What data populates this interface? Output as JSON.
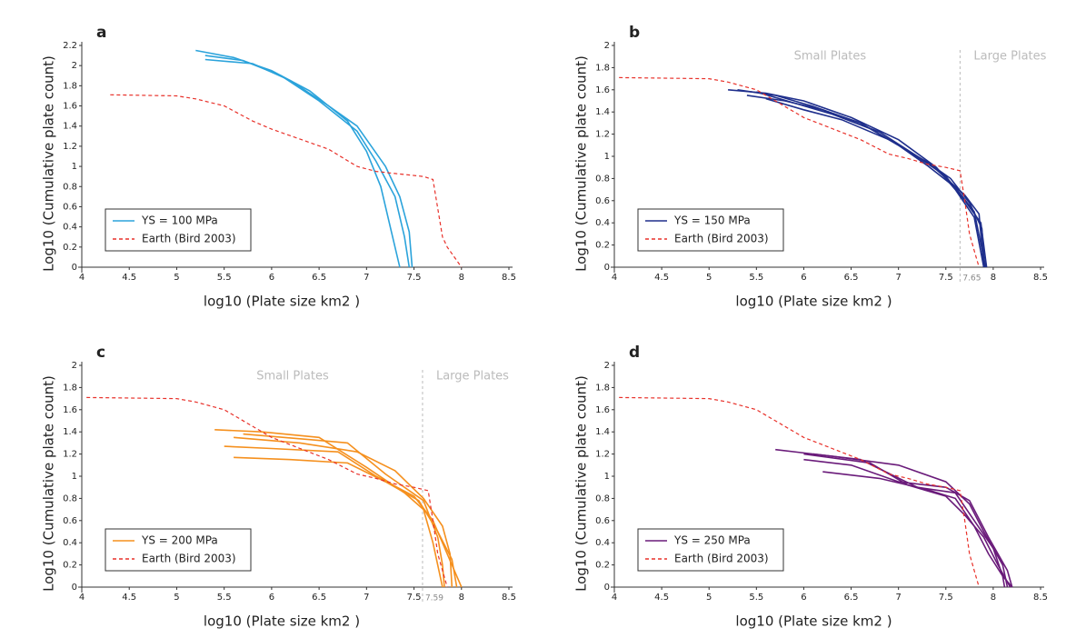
{
  "chart_data": [
    {
      "type": "line",
      "title": "a",
      "x_label": "log10 (Plate size km2 )",
      "y_label": "Log10 (Cumulative plate count)",
      "xlim": [
        4,
        8.5
      ],
      "xticks": [
        4,
        4.5,
        5,
        5.5,
        6,
        6.5,
        7,
        7.5,
        8,
        8.5
      ],
      "ylim": [
        0,
        2.2
      ],
      "yticks": [
        0,
        0.2,
        0.4,
        0.6,
        0.8,
        1,
        1.2,
        1.4,
        1.6,
        1.8,
        2,
        2.2
      ],
      "series": [
        {
          "name": "YS = 100 MPa",
          "color": "#2ba3db",
          "dashed": false,
          "runs": [
            {
              "x": [
                5.2,
                5.6,
                6.0,
                6.4,
                6.8,
                7.0,
                7.15,
                7.25,
                7.35
              ],
              "values": [
                2.15,
                2.08,
                1.95,
                1.75,
                1.45,
                1.15,
                0.8,
                0.4,
                0
              ]
            },
            {
              "x": [
                5.3,
                5.7,
                6.1,
                6.5,
                6.9,
                7.1,
                7.3,
                7.4,
                7.45
              ],
              "values": [
                2.1,
                2.05,
                1.9,
                1.65,
                1.35,
                1.05,
                0.7,
                0.3,
                0
              ]
            },
            {
              "x": [
                5.3,
                5.8,
                6.2,
                6.6,
                6.9,
                7.2,
                7.35,
                7.45,
                7.48
              ],
              "values": [
                2.06,
                2.02,
                1.85,
                1.6,
                1.4,
                1.0,
                0.7,
                0.35,
                0
              ]
            }
          ]
        },
        {
          "name": "Earth (Bird 2003)",
          "color": "#e8312a",
          "dashed": true,
          "runs": [
            {
              "x": [
                4.3,
                5.0,
                5.2,
                5.5,
                5.8,
                6.0,
                6.3,
                6.6,
                6.9,
                7.1,
                7.3,
                7.6,
                7.7,
                7.8,
                7.85,
                8.0
              ],
              "values": [
                1.71,
                1.7,
                1.67,
                1.6,
                1.45,
                1.37,
                1.27,
                1.17,
                1.0,
                0.95,
                0.93,
                0.9,
                0.87,
                0.3,
                0.2,
                0
              ]
            }
          ]
        }
      ]
    },
    {
      "type": "line",
      "title": "b",
      "x_label": "log10 (Plate size km2 )",
      "y_label": "Log10 (Cumulative plate count)",
      "xlim": [
        4,
        8.5
      ],
      "xticks": [
        4,
        4.5,
        5,
        5.5,
        6,
        6.5,
        7,
        7.5,
        8,
        8.5
      ],
      "ylim": [
        0,
        2
      ],
      "yticks": [
        0,
        0.2,
        0.4,
        0.6,
        0.8,
        1,
        1.2,
        1.4,
        1.6,
        1.8,
        2
      ],
      "divider": 7.65,
      "annotations": [
        "Small Plates",
        "Large Plates"
      ],
      "series": [
        {
          "name": "YS = 150 MPa",
          "color": "#1f2f8c",
          "dashed": false,
          "runs": [
            {
              "x": [
                5.2,
                5.6,
                6.0,
                6.5,
                7.0,
                7.4,
                7.6,
                7.8,
                7.9
              ],
              "values": [
                1.6,
                1.57,
                1.5,
                1.35,
                1.15,
                0.9,
                0.7,
                0.45,
                0
              ]
            },
            {
              "x": [
                5.3,
                5.7,
                6.1,
                6.6,
                7.0,
                7.3,
                7.6,
                7.8,
                7.92
              ],
              "values": [
                1.6,
                1.55,
                1.45,
                1.3,
                1.1,
                0.92,
                0.72,
                0.5,
                0
              ]
            },
            {
              "x": [
                5.4,
                5.8,
                6.2,
                6.7,
                7.1,
                7.4,
                7.7,
                7.85,
                7.9
              ],
              "values": [
                1.55,
                1.5,
                1.42,
                1.25,
                1.05,
                0.88,
                0.65,
                0.48,
                0
              ]
            },
            {
              "x": [
                5.5,
                5.9,
                6.3,
                6.8,
                7.2,
                7.5,
                7.7,
                7.87,
                7.93
              ],
              "values": [
                1.58,
                1.48,
                1.38,
                1.22,
                1.0,
                0.82,
                0.6,
                0.4,
                0
              ]
            },
            {
              "x": [
                5.6,
                6.0,
                6.4,
                6.9,
                7.3,
                7.55,
                7.75,
                7.88,
                7.91
              ],
              "values": [
                1.52,
                1.42,
                1.33,
                1.15,
                0.95,
                0.8,
                0.58,
                0.35,
                0
              ]
            }
          ]
        },
        {
          "name": "Earth (Bird 2003)",
          "color": "#e8312a",
          "dashed": true,
          "runs": [
            {
              "x": [
                4.05,
                5.0,
                5.2,
                5.5,
                5.8,
                6.0,
                6.3,
                6.6,
                6.9,
                7.1,
                7.3,
                7.5,
                7.65,
                7.7,
                7.75,
                7.8,
                7.85
              ],
              "values": [
                1.71,
                1.7,
                1.67,
                1.6,
                1.45,
                1.35,
                1.25,
                1.15,
                1.02,
                0.98,
                0.93,
                0.9,
                0.87,
                0.6,
                0.3,
                0.15,
                0
              ]
            }
          ]
        }
      ]
    },
    {
      "type": "line",
      "title": "c",
      "x_label": "log10 (Plate size km2 )",
      "y_label": "Log10 (Cumulative plate count)",
      "xlim": [
        4,
        8.5
      ],
      "xticks": [
        4,
        4.5,
        5,
        5.5,
        6,
        6.5,
        7,
        7.5,
        8,
        8.5
      ],
      "ylim": [
        0,
        2
      ],
      "yticks": [
        0,
        0.2,
        0.4,
        0.6,
        0.8,
        1,
        1.2,
        1.4,
        1.6,
        1.8,
        2
      ],
      "divider": 7.59,
      "annotations": [
        "Small Plates",
        "Large Plates"
      ],
      "series": [
        {
          "name": "YS = 200 MPa",
          "color": "#f5901e",
          "dashed": false,
          "runs": [
            {
              "x": [
                5.4,
                5.9,
                6.5,
                7.0,
                7.4,
                7.6,
                7.7,
                7.8
              ],
              "values": [
                1.42,
                1.4,
                1.35,
                1.08,
                0.85,
                0.7,
                0.4,
                0
              ]
            },
            {
              "x": [
                5.5,
                6.0,
                6.7,
                7.1,
                7.5,
                7.7,
                7.85,
                8.0
              ],
              "values": [
                1.27,
                1.25,
                1.22,
                1.0,
                0.82,
                0.6,
                0.3,
                0
              ]
            },
            {
              "x": [
                5.6,
                6.2,
                6.8,
                7.2,
                7.55,
                7.75,
                7.9,
                7.95
              ],
              "values": [
                1.17,
                1.15,
                1.12,
                0.95,
                0.78,
                0.5,
                0.25,
                0
              ]
            },
            {
              "x": [
                5.6,
                6.3,
                6.9,
                7.3,
                7.6,
                7.8,
                7.88,
                7.9
              ],
              "values": [
                1.35,
                1.3,
                1.22,
                1.05,
                0.8,
                0.55,
                0.3,
                0
              ]
            },
            {
              "x": [
                5.7,
                6.4,
                6.8,
                7.2,
                7.6,
                7.75,
                7.8,
                7.82
              ],
              "values": [
                1.38,
                1.33,
                1.3,
                1.02,
                0.78,
                0.45,
                0.2,
                0
              ]
            }
          ]
        },
        {
          "name": "Earth (Bird 2003)",
          "color": "#e8312a",
          "dashed": true,
          "runs": [
            {
              "x": [
                4.05,
                5.0,
                5.2,
                5.5,
                5.8,
                6.0,
                6.3,
                6.6,
                6.9,
                7.1,
                7.3,
                7.5,
                7.65,
                7.7,
                7.75,
                7.8,
                7.85
              ],
              "values": [
                1.71,
                1.7,
                1.67,
                1.6,
                1.45,
                1.35,
                1.25,
                1.15,
                1.02,
                0.98,
                0.93,
                0.9,
                0.87,
                0.6,
                0.3,
                0.15,
                0
              ]
            }
          ]
        }
      ]
    },
    {
      "type": "line",
      "title": "d",
      "x_label": "log10 (Plate size km2 )",
      "y_label": "Log10 (Cumulative plate count)",
      "xlim": [
        4,
        8.5
      ],
      "xticks": [
        4,
        4.5,
        5,
        5.5,
        6,
        6.5,
        7,
        7.5,
        8,
        8.5
      ],
      "ylim": [
        0,
        2
      ],
      "yticks": [
        0,
        0.2,
        0.4,
        0.6,
        0.8,
        1,
        1.2,
        1.4,
        1.6,
        1.8,
        2
      ],
      "series": [
        {
          "name": "YS = 250 MPa",
          "color": "#6a1b7a",
          "dashed": false,
          "runs": [
            {
              "x": [
                5.7,
                6.3,
                7.0,
                7.5,
                7.75,
                7.9,
                8.1,
                8.15
              ],
              "values": [
                1.24,
                1.18,
                1.1,
                0.95,
                0.75,
                0.5,
                0.2,
                0
              ]
            },
            {
              "x": [
                6.0,
                6.5,
                7.0,
                7.5,
                7.75,
                7.95,
                8.15,
                8.2
              ],
              "values": [
                1.15,
                1.1,
                0.95,
                0.9,
                0.78,
                0.45,
                0.15,
                0
              ]
            },
            {
              "x": [
                6.1,
                6.6,
                7.2,
                7.6,
                7.8,
                8.0,
                8.1,
                8.12
              ],
              "values": [
                1.2,
                1.15,
                0.9,
                0.85,
                0.6,
                0.35,
                0.1,
                0
              ]
            },
            {
              "x": [
                6.2,
                6.8,
                7.3,
                7.6,
                7.8,
                7.95,
                8.1,
                8.2
              ],
              "values": [
                1.04,
                0.98,
                0.88,
                0.8,
                0.55,
                0.3,
                0.1,
                0
              ]
            },
            {
              "x": [
                6.0,
                6.7,
                7.1,
                7.5,
                7.7,
                7.9,
                8.05,
                8.18
              ],
              "values": [
                1.2,
                1.12,
                0.92,
                0.82,
                0.65,
                0.45,
                0.2,
                0
              ]
            }
          ]
        },
        {
          "name": "Earth (Bird 2003)",
          "color": "#e8312a",
          "dashed": true,
          "runs": [
            {
              "x": [
                4.05,
                5.0,
                5.2,
                5.5,
                5.8,
                6.0,
                6.3,
                6.6,
                6.9,
                7.1,
                7.3,
                7.5,
                7.65,
                7.7,
                7.75,
                7.8,
                7.85
              ],
              "values": [
                1.71,
                1.7,
                1.67,
                1.6,
                1.45,
                1.35,
                1.25,
                1.15,
                1.02,
                0.98,
                0.93,
                0.9,
                0.87,
                0.6,
                0.3,
                0.15,
                0
              ]
            }
          ]
        }
      ]
    }
  ]
}
